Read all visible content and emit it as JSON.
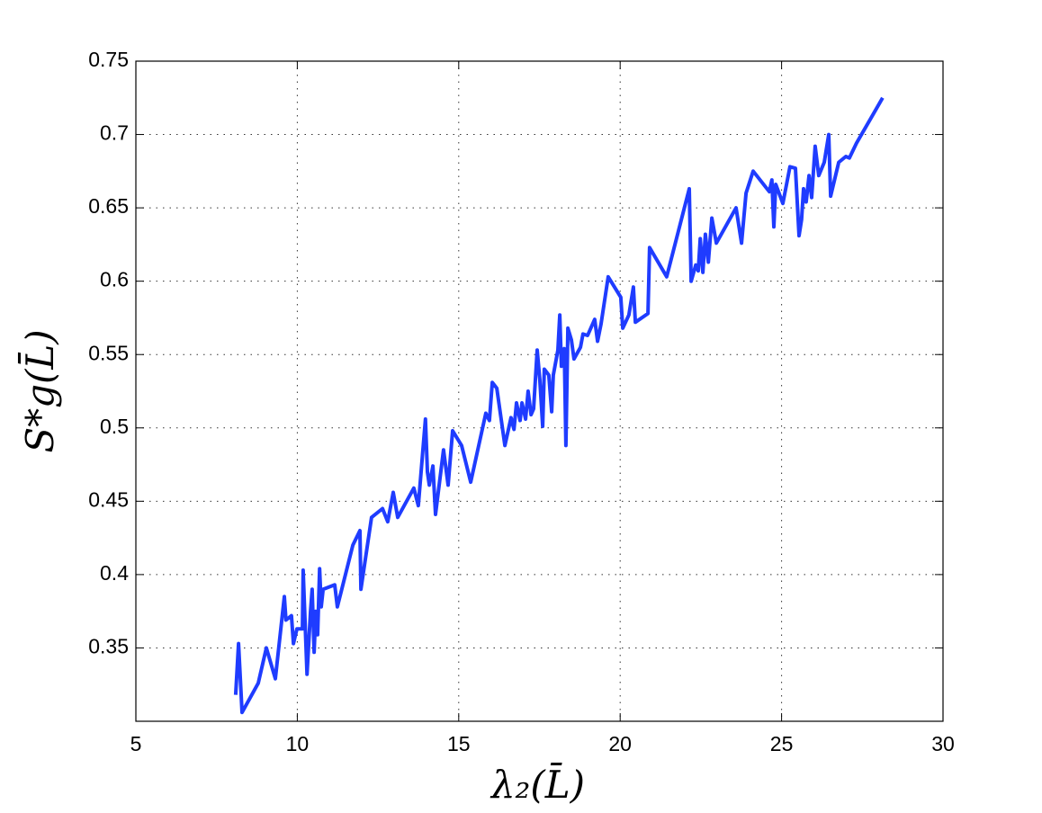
{
  "chart_data": {
    "type": "line",
    "x_label": "λ₂(L̄)",
    "y_label": "S*g(L̄)",
    "color": "#1f3cff",
    "grid": true,
    "xlim": [
      5,
      30
    ],
    "xticks": [
      5,
      10,
      15,
      20,
      25,
      30
    ],
    "ylim": [
      0.3,
      0.75
    ],
    "yticks": [
      0.35,
      0.4,
      0.45,
      0.5,
      0.55,
      0.6,
      0.65,
      0.7,
      0.75
    ],
    "x": [
      8.09,
      8.18,
      8.29,
      8.79,
      9.04,
      9.32,
      9.6,
      9.65,
      9.82,
      9.88,
      9.99,
      10.16,
      10.18,
      10.3,
      10.41,
      10.46,
      10.52,
      10.57,
      10.63,
      10.69,
      10.74,
      10.8,
      11.16,
      11.24,
      11.72,
      11.94,
      11.97,
      12.3,
      12.64,
      12.8,
      12.97,
      13.11,
      13.61,
      13.75,
      13.97,
      14.03,
      14.09,
      14.2,
      14.28,
      14.53,
      14.67,
      14.81,
      15.09,
      15.37,
      15.84,
      15.95,
      16.04,
      16.18,
      16.43,
      16.62,
      16.71,
      16.79,
      16.9,
      16.96,
      17.07,
      17.15,
      17.24,
      17.32,
      17.43,
      17.51,
      17.6,
      17.65,
      17.79,
      17.88,
      17.93,
      18.07,
      18.13,
      18.18,
      18.27,
      18.32,
      18.38,
      18.49,
      18.57,
      18.77,
      18.85,
      18.99,
      19.21,
      19.3,
      19.41,
      19.63,
      20.02,
      20.08,
      20.27,
      20.41,
      20.47,
      20.86,
      20.91,
      21.44,
      22.14,
      22.2,
      22.34,
      22.42,
      22.48,
      22.56,
      22.64,
      22.73,
      22.84,
      22.98,
      23.59,
      23.76,
      23.9,
      24.12,
      24.62,
      24.7,
      24.76,
      24.82,
      25.04,
      25.26,
      25.43,
      25.54,
      25.62,
      25.68,
      25.76,
      25.85,
      25.93,
      26.04,
      26.15,
      26.32,
      26.46,
      26.52,
      26.77,
      26.99,
      27.1,
      27.32,
      28.13
    ],
    "values": [
      0.318,
      0.353,
      0.306,
      0.326,
      0.35,
      0.329,
      0.385,
      0.369,
      0.372,
      0.353,
      0.363,
      0.363,
      0.403,
      0.332,
      0.375,
      0.39,
      0.347,
      0.375,
      0.359,
      0.404,
      0.378,
      0.39,
      0.393,
      0.378,
      0.42,
      0.43,
      0.39,
      0.439,
      0.445,
      0.436,
      0.456,
      0.439,
      0.459,
      0.447,
      0.506,
      0.47,
      0.461,
      0.474,
      0.441,
      0.485,
      0.461,
      0.498,
      0.488,
      0.463,
      0.51,
      0.505,
      0.531,
      0.527,
      0.488,
      0.507,
      0.499,
      0.517,
      0.505,
      0.517,
      0.506,
      0.525,
      0.509,
      0.513,
      0.553,
      0.533,
      0.501,
      0.54,
      0.536,
      0.511,
      0.536,
      0.553,
      0.577,
      0.542,
      0.554,
      0.488,
      0.568,
      0.56,
      0.547,
      0.555,
      0.564,
      0.563,
      0.574,
      0.559,
      0.571,
      0.603,
      0.589,
      0.568,
      0.577,
      0.596,
      0.572,
      0.578,
      0.623,
      0.603,
      0.663,
      0.6,
      0.611,
      0.607,
      0.629,
      0.606,
      0.632,
      0.613,
      0.643,
      0.626,
      0.65,
      0.626,
      0.66,
      0.675,
      0.661,
      0.669,
      0.637,
      0.666,
      0.653,
      0.678,
      0.677,
      0.631,
      0.642,
      0.663,
      0.654,
      0.672,
      0.657,
      0.692,
      0.672,
      0.681,
      0.7,
      0.658,
      0.681,
      0.685,
      0.684,
      0.694,
      0.725
    ]
  }
}
